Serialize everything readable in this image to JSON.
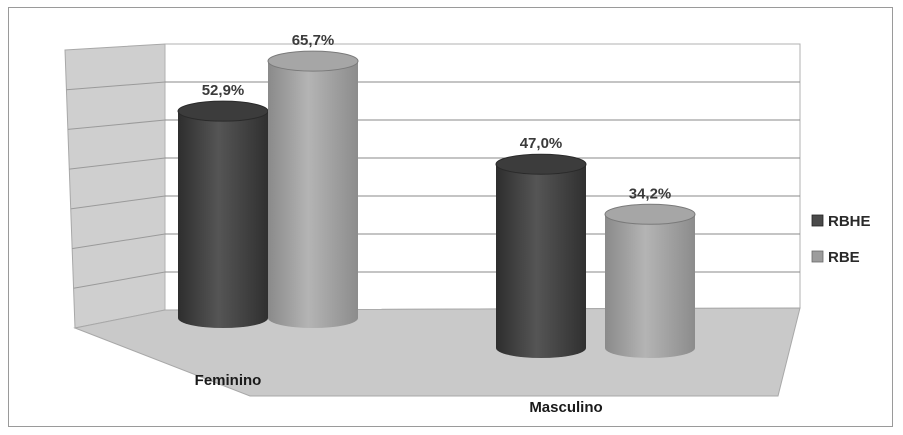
{
  "chart_data": {
    "type": "bar",
    "style": "3d-cylinder",
    "categories": [
      "Feminino",
      "Masculino"
    ],
    "series": [
      {
        "name": "RBHE",
        "values": [
          52.9,
          47.0
        ],
        "labels": [
          "52,9%",
          "47,0%"
        ],
        "color": "#4a4a4a"
      },
      {
        "name": "RBE",
        "values": [
          65.7,
          34.2
        ],
        "labels": [
          "65,7%",
          "34,2%"
        ],
        "color": "#9c9c9c"
      }
    ],
    "ylim": [
      0,
      70
    ],
    "grid": true,
    "legend": "right"
  }
}
